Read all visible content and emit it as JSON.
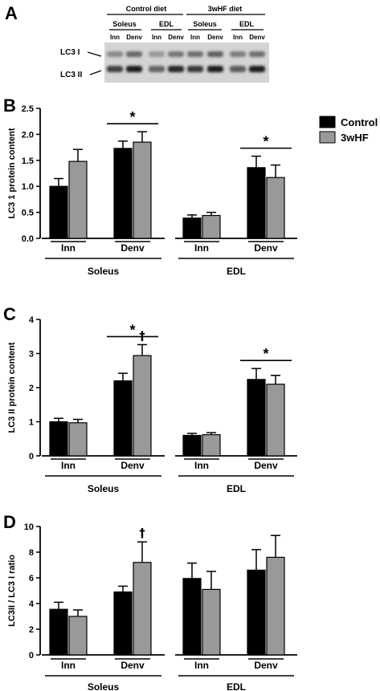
{
  "panel_letters": [
    "A",
    "B",
    "C",
    "D"
  ],
  "colors": {
    "control": "#000000",
    "hf": "#999999"
  },
  "blot": {
    "diets": [
      "Control diet",
      "3wHF diet"
    ],
    "muscles": [
      "Soleus",
      "EDL",
      "Soleus",
      "EDL"
    ],
    "lanes": [
      "Inn",
      "Denv",
      "Inn",
      "Denv",
      "Inn",
      "Denv",
      "Inn",
      "Denv"
    ],
    "bands": [
      "LC3 I",
      "LC3 II"
    ]
  },
  "legend": [
    {
      "name": "Control",
      "color": "#000000"
    },
    {
      "name": "3wHF",
      "color": "#999999"
    }
  ],
  "chart_data": [
    {
      "type": "bar",
      "panel": "B",
      "ylabel": "LC3 1 protein content",
      "ylim": [
        0,
        2.5
      ],
      "yticks": [
        "0.0",
        "0.5",
        "1.0",
        "1.5",
        "2.0",
        "2.5"
      ],
      "groups": [
        "Soleus",
        "EDL"
      ],
      "categories": [
        "Inn",
        "Denv",
        "Inn",
        "Denv"
      ],
      "series": [
        {
          "name": "Control",
          "values": [
            1.0,
            1.73,
            0.39,
            1.36
          ],
          "errors": [
            0.15,
            0.14,
            0.06,
            0.22
          ]
        },
        {
          "name": "3wHF",
          "values": [
            1.48,
            1.85,
            0.44,
            1.17
          ],
          "errors": [
            0.23,
            0.2,
            0.06,
            0.24
          ]
        }
      ],
      "annotations": [
        {
          "text": "*",
          "spans_categories": [
            1
          ]
        },
        {
          "text": "*",
          "spans_categories": [
            3
          ]
        }
      ]
    },
    {
      "type": "bar",
      "panel": "C",
      "ylabel": "LC3 II protein content",
      "ylim": [
        0,
        4
      ],
      "yticks": [
        "0",
        "1",
        "2",
        "3",
        "4"
      ],
      "groups": [
        "Soleus",
        "EDL"
      ],
      "categories": [
        "Inn",
        "Denv",
        "Inn",
        "Denv"
      ],
      "series": [
        {
          "name": "Control",
          "values": [
            1.0,
            2.2,
            0.6,
            2.24
          ],
          "errors": [
            0.1,
            0.22,
            0.06,
            0.32
          ]
        },
        {
          "name": "3wHF",
          "values": [
            0.97,
            2.94,
            0.62,
            2.1
          ],
          "errors": [
            0.1,
            0.32,
            0.06,
            0.26
          ]
        }
      ],
      "annotations": [
        {
          "text": "*",
          "spans_categories": [
            1
          ]
        },
        {
          "text": "*",
          "spans_categories": [
            3
          ]
        },
        {
          "text": "†",
          "category": 1,
          "series": 1
        }
      ]
    },
    {
      "type": "bar",
      "panel": "D",
      "ylabel": "LC3II / LC3 I ratio",
      "ylim": [
        0,
        10
      ],
      "yticks": [
        "0",
        "2",
        "4",
        "6",
        "8",
        "10"
      ],
      "groups": [
        "Soleus",
        "EDL"
      ],
      "categories": [
        "Inn",
        "Denv",
        "Inn",
        "Denv"
      ],
      "series": [
        {
          "name": "Control",
          "values": [
            3.55,
            4.9,
            5.95,
            6.6
          ],
          "errors": [
            0.55,
            0.45,
            1.2,
            1.6
          ]
        },
        {
          "name": "3wHF",
          "values": [
            3.0,
            7.2,
            5.1,
            7.6
          ],
          "errors": [
            0.5,
            1.6,
            1.4,
            1.7
          ]
        }
      ],
      "annotations": [
        {
          "text": "†",
          "category": 1,
          "series": 1
        }
      ]
    }
  ]
}
